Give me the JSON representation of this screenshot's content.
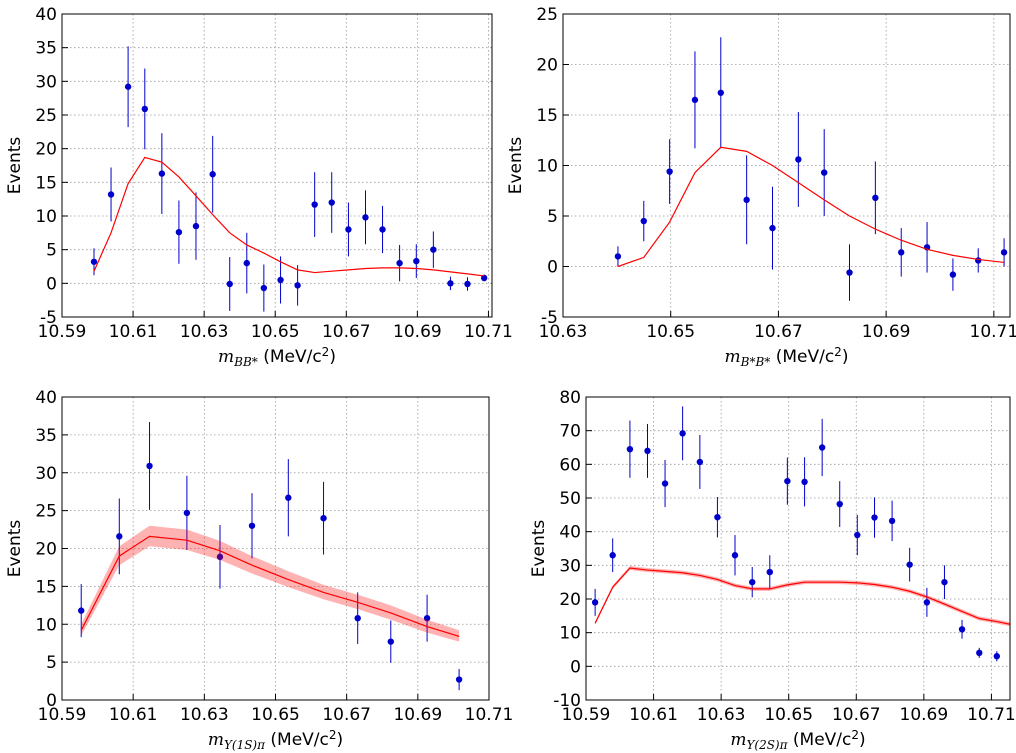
{
  "chart_data": [
    {
      "type": "scatter",
      "ylabel": "Events",
      "xlabel": [
        "m",
        "BB*",
        " (MeV/c",
        "2",
        ")"
      ],
      "xlim": [
        10.59,
        10.711
      ],
      "ylim": [
        -5,
        40
      ],
      "xticks": [
        10.59,
        10.61,
        10.63,
        10.65,
        10.67,
        10.69,
        10.71
      ],
      "yticks": [
        -5,
        0,
        5,
        10,
        15,
        20,
        25,
        30,
        35,
        40
      ],
      "grid": true,
      "series": [
        {
          "kind": "errorbar",
          "color": "#0000cc",
          "x": [
            10.599,
            10.6038,
            10.6086,
            10.6133,
            10.6181,
            10.6229,
            10.6277,
            10.6324,
            10.6372,
            10.642,
            10.6468,
            10.6515,
            10.6563,
            10.6611,
            10.6659,
            10.6706,
            10.6754,
            10.6802,
            10.685,
            10.6897,
            10.6945,
            10.6993,
            10.7041,
            10.7088
          ],
          "values": [
            3.2,
            13.2,
            29.2,
            25.9,
            16.3,
            7.6,
            8.5,
            16.2,
            -0.1,
            3,
            -0.7,
            0.5,
            -0.3,
            11.7,
            12,
            8,
            9.8,
            8,
            3,
            3.3,
            5,
            0,
            -0.1,
            0.8
          ],
          "errors": [
            2,
            4,
            6,
            6,
            6,
            4.7,
            5,
            5.7,
            4,
            4.5,
            3.5,
            3.5,
            3,
            4.8,
            4.5,
            4,
            4,
            3.5,
            2.7,
            2.5,
            2.7,
            1,
            1,
            0.5
          ]
        },
        {
          "kind": "line",
          "color": "#ff0000",
          "x": [
            10.599,
            10.6038,
            10.6086,
            10.6133,
            10.6181,
            10.6229,
            10.6277,
            10.6324,
            10.6372,
            10.642,
            10.6468,
            10.6515,
            10.6563,
            10.6611,
            10.6659,
            10.6706,
            10.6754,
            10.6802,
            10.685,
            10.6897,
            10.6945,
            10.6993,
            10.7041,
            10.7088
          ],
          "values": [
            1.8,
            7.5,
            14.8,
            18.7,
            18,
            15.8,
            13,
            10.2,
            7.5,
            5.7,
            4.5,
            3.2,
            2,
            1.6,
            1.8,
            2,
            2.2,
            2.3,
            2.3,
            2.2,
            2,
            1.7,
            1.4,
            1.1
          ]
        }
      ]
    },
    {
      "type": "scatter",
      "ylabel": "Events",
      "xlabel": [
        "m",
        "B*B*",
        " (MeV/c",
        "2",
        ")"
      ],
      "xlim": [
        10.63,
        10.713
      ],
      "ylim": [
        -5,
        25
      ],
      "xticks": [
        10.63,
        10.65,
        10.67,
        10.69,
        10.71
      ],
      "yticks": [
        -5,
        0,
        5,
        10,
        15,
        20,
        25
      ],
      "grid": true,
      "series": [
        {
          "kind": "errorbar",
          "color": "#0000cc",
          "x": [
            10.6402,
            10.645,
            10.6498,
            10.6545,
            10.6593,
            10.6641,
            10.6689,
            10.6737,
            10.6785,
            10.6832,
            10.688,
            10.6928,
            10.6976,
            10.7024,
            10.7071,
            10.7119
          ],
          "values": [
            1,
            4.5,
            9.4,
            16.5,
            17.2,
            6.6,
            3.8,
            10.6,
            9.3,
            -0.6,
            6.8,
            1.4,
            1.9,
            -0.8,
            0.6,
            1.4
          ],
          "errors": [
            1,
            2,
            3.2,
            4.8,
            5.5,
            4.4,
            4.1,
            4.7,
            4.3,
            2.8,
            3.6,
            2.4,
            2.5,
            1.6,
            1.2,
            1.4
          ]
        },
        {
          "kind": "line",
          "color": "#ff0000",
          "x": [
            10.6402,
            10.645,
            10.6498,
            10.6545,
            10.6593,
            10.6641,
            10.6689,
            10.6737,
            10.6785,
            10.6832,
            10.688,
            10.6928,
            10.6976,
            10.7024,
            10.7071,
            10.7119
          ],
          "values": [
            0,
            0.9,
            4.4,
            9.3,
            11.8,
            11.4,
            10,
            8.3,
            6.6,
            5,
            3.7,
            2.6,
            1.7,
            1.1,
            0.7,
            0.4
          ]
        }
      ]
    },
    {
      "type": "scatter",
      "ylabel": "Events",
      "xlabel": [
        "m",
        "Υ(1S)π",
        " (MeV/c",
        "2",
        ")"
      ],
      "xlim": [
        10.59,
        10.71
      ],
      "ylim": [
        0,
        40
      ],
      "xticks": [
        10.59,
        10.61,
        10.63,
        10.65,
        10.67,
        10.69,
        10.71
      ],
      "yticks": [
        0,
        5,
        10,
        15,
        20,
        25,
        30,
        35,
        40
      ],
      "grid": true,
      "series": [
        {
          "kind": "errorbar",
          "color": "#0000cc",
          "x": [
            10.5954,
            10.6061,
            10.6146,
            10.6251,
            10.6344,
            10.6434,
            10.6536,
            10.6635,
            10.6731,
            10.6824,
            10.6926,
            10.7016
          ],
          "values": [
            11.8,
            21.6,
            30.9,
            24.7,
            18.9,
            23,
            26.7,
            24,
            10.8,
            7.7,
            10.8,
            2.7
          ],
          "errors": [
            3.5,
            5,
            5.8,
            4.9,
            4.2,
            4.3,
            5.1,
            4.8,
            3.4,
            2.8,
            3.1,
            1.4
          ]
        },
        {
          "kind": "band",
          "color": "#ff0000",
          "x": [
            10.5954,
            10.6061,
            10.6146,
            10.6251,
            10.6344,
            10.6434,
            10.6536,
            10.6635,
            10.6731,
            10.6824,
            10.6926,
            10.7016
          ],
          "values": [
            9.2,
            19,
            21.6,
            21.1,
            19.7,
            17.8,
            15.9,
            14.2,
            12.9,
            11.5,
            9.7,
            8.4
          ],
          "low": [
            8.5,
            17.8,
            20.3,
            19.8,
            18.5,
            16.7,
            14.9,
            13.3,
            12,
            10.6,
            8.9,
            7.7
          ],
          "high": [
            10,
            20.3,
            23,
            22.5,
            21,
            19,
            17,
            15.2,
            13.9,
            12.5,
            10.6,
            9.2
          ]
        }
      ]
    },
    {
      "type": "scatter",
      "ylabel": "Events",
      "xlabel": [
        "m",
        "Υ(2S)π",
        " (MeV/c",
        "2",
        ")"
      ],
      "xlim": [
        10.59,
        10.7155
      ],
      "ylim": [
        -10,
        80
      ],
      "xticks": [
        10.59,
        10.61,
        10.63,
        10.65,
        10.67,
        10.69,
        10.71
      ],
      "yticks": [
        -10,
        0,
        10,
        20,
        30,
        40,
        50,
        60,
        70,
        80
      ],
      "grid": true,
      "series": [
        {
          "kind": "errorbar",
          "color": "#0000cc",
          "x": [
            10.5927,
            10.5979,
            10.603,
            10.6082,
            10.6134,
            10.6186,
            10.6237,
            10.6289,
            10.6341,
            10.6392,
            10.6444,
            10.6496,
            10.6547,
            10.6599,
            10.6651,
            10.6703,
            10.6754,
            10.6806,
            10.6858,
            10.6909,
            10.6961,
            10.7013,
            10.7064,
            10.7116
          ],
          "values": [
            19,
            33,
            64.5,
            64,
            54.3,
            69.2,
            60.7,
            44.3,
            33,
            25,
            28,
            55,
            54.8,
            65,
            48.2,
            39,
            44.2,
            43.2,
            30.2,
            19,
            25,
            11,
            4,
            3
          ],
          "errors": [
            4,
            5,
            8.5,
            8,
            7,
            8,
            8,
            6,
            6,
            4.5,
            5,
            7,
            7.3,
            8.5,
            6.8,
            6,
            6,
            6,
            5,
            4.3,
            5,
            2.8,
            1.5,
            1.5
          ]
        },
        {
          "kind": "band",
          "color": "#ff0000",
          "x": [
            10.5927,
            10.5979,
            10.603,
            10.6082,
            10.6134,
            10.6186,
            10.6237,
            10.6289,
            10.6341,
            10.6392,
            10.6444,
            10.6496,
            10.6547,
            10.6599,
            10.6651,
            10.6703,
            10.6754,
            10.6806,
            10.6858,
            10.6909,
            10.6961,
            10.7013,
            10.7064,
            10.7116,
            10.7155
          ],
          "values": [
            12.8,
            23.5,
            29.2,
            28.6,
            28.2,
            27.8,
            27,
            25.8,
            24,
            23,
            23,
            24.2,
            25,
            25,
            25,
            24.8,
            24.3,
            23.5,
            22.3,
            20.6,
            18.5,
            16.3,
            14.2,
            13.3,
            12.5
          ],
          "low": [
            12.3,
            23,
            28.6,
            28,
            27.6,
            27.2,
            26.4,
            25.2,
            23.4,
            22.4,
            22.4,
            23.6,
            24.4,
            24.4,
            24.4,
            24.2,
            23.7,
            22.9,
            21.7,
            20,
            17.9,
            15.7,
            13.6,
            12.7,
            11.9
          ],
          "high": [
            13.3,
            24,
            29.8,
            29.2,
            28.8,
            28.4,
            27.6,
            26.4,
            24.6,
            23.6,
            23.6,
            24.8,
            25.6,
            25.6,
            25.6,
            25.4,
            24.9,
            24.1,
            22.9,
            21.2,
            19.1,
            16.9,
            14.8,
            13.9,
            13.1
          ]
        }
      ]
    }
  ]
}
